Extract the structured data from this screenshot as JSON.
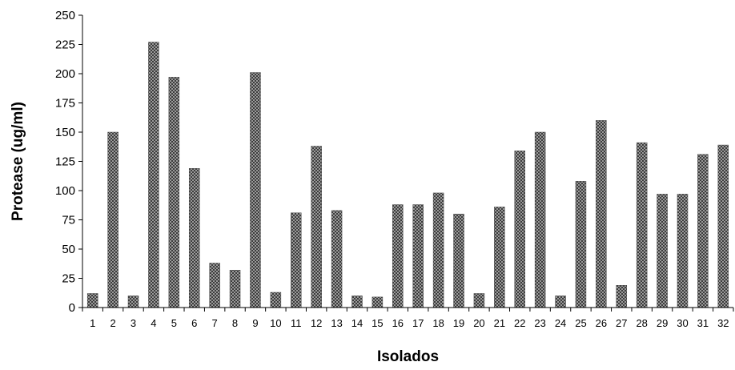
{
  "chart_data": {
    "type": "bar",
    "title": "",
    "xlabel": "Isolados",
    "ylabel": "Protease (ug/ml)",
    "ylim": [
      0,
      250
    ],
    "yticks": [
      "0",
      "25",
      "50",
      "75",
      "100",
      "125",
      "150",
      "175",
      "200",
      "225",
      "250"
    ],
    "categories": [
      "1",
      "2",
      "3",
      "4",
      "5",
      "6",
      "7",
      "8",
      "9",
      "10",
      "11",
      "12",
      "13",
      "14",
      "15",
      "16",
      "17",
      "18",
      "19",
      "20",
      "21",
      "22",
      "23",
      "24",
      "25",
      "26",
      "27",
      "28",
      "29",
      "30",
      "31",
      "32"
    ],
    "values": [
      12,
      150,
      10,
      227,
      197,
      119,
      38,
      32,
      201,
      13,
      81,
      138,
      83,
      10,
      9,
      88,
      88,
      98,
      80,
      12,
      86,
      134,
      150,
      10,
      108,
      160,
      19,
      141,
      97,
      97,
      131,
      139
    ],
    "bar_color": "#4a4a4a",
    "grid": false,
    "legend": "none"
  }
}
